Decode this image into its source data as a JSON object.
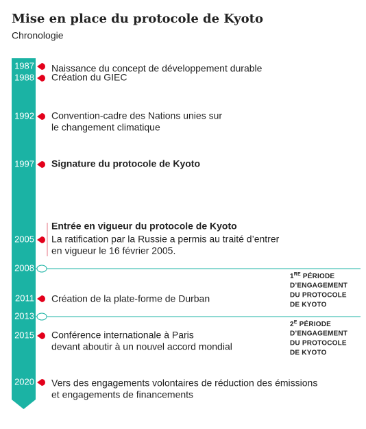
{
  "header": {
    "title": "Mise en place du protocole de Kyoto",
    "subtitle": "Chronologie"
  },
  "timeline": [
    {
      "year": "1987",
      "text": [
        "Naissance du concept de développement durable"
      ]
    },
    {
      "year": "1988",
      "text": [
        "Création du GIEC"
      ]
    },
    {
      "year": "1992",
      "text": [
        "Convention-cadre des Nations unies sur",
        "le changement climatique"
      ]
    },
    {
      "year": "1997",
      "bold": true,
      "text": [
        "Signature du protocole de Kyoto"
      ]
    },
    {
      "year": "2005",
      "heading": "Entrée en vigueur du protocole de Kyoto",
      "text": [
        "La ratification par la Russie a permis au traité d’entrer",
        "en vigueur le 16 février 2005."
      ]
    },
    {
      "year": "2008",
      "period": {
        "ordinal": "1",
        "suffix": "RE",
        "lines": [
          "PÉRIODE",
          "D’ENGAGEMENT",
          "DU PROTOCOLE",
          "DE KYOTO"
        ]
      }
    },
    {
      "year": "2011",
      "text": [
        "Création de la plate-forme de Durban"
      ]
    },
    {
      "year": "2013",
      "period": {
        "ordinal": "2",
        "suffix": "E",
        "lines": [
          "PÉRIODE",
          "D’ENGAGEMENT",
          "DU PROTOCOLE",
          "DE KYOTO"
        ]
      }
    },
    {
      "year": "2015",
      "text": [
        "Conférence internationale à Paris",
        "devant aboutir à un nouvel accord mondial"
      ]
    },
    {
      "year": "2020",
      "text": [
        "Vers des engagements volontaires de réduction des émissions",
        "et engagements de financements"
      ]
    }
  ]
}
